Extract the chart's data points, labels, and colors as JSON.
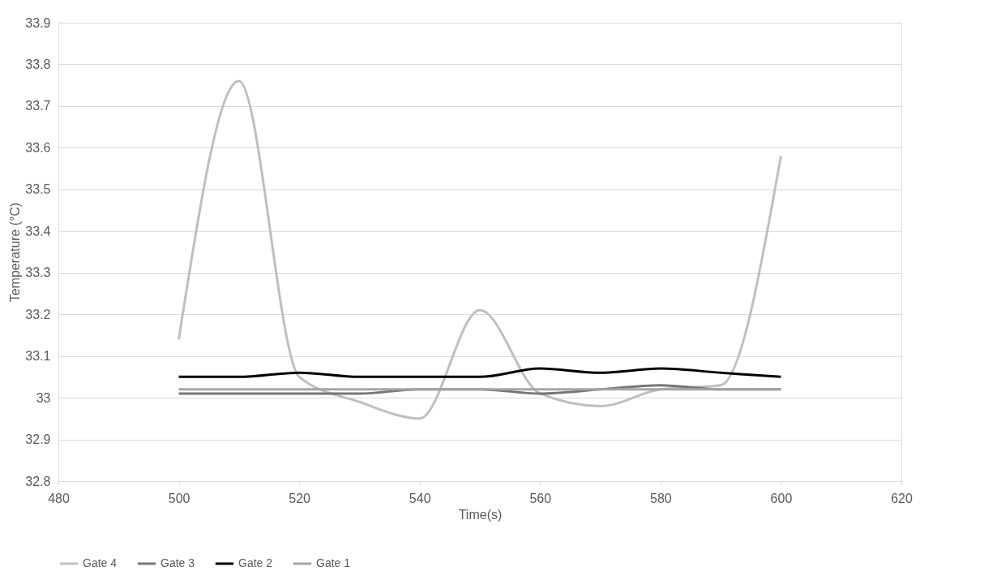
{
  "chart_data": {
    "type": "line",
    "xlabel": "Time(s)",
    "ylabel": "Temperature (°C)",
    "x": [
      500,
      510,
      520,
      530,
      540,
      550,
      560,
      570,
      580,
      590,
      600
    ],
    "series": [
      {
        "name": "Gate 4",
        "color": "#bfbfbf",
        "values": [
          33.14,
          33.76,
          33.05,
          32.99,
          32.95,
          33.21,
          33.01,
          32.98,
          33.02,
          33.03,
          33.58
        ]
      },
      {
        "name": "Gate 3",
        "color": "#767676",
        "values": [
          33.01,
          33.01,
          33.01,
          33.01,
          33.02,
          33.02,
          33.01,
          33.02,
          33.03,
          33.02,
          33.02
        ]
      },
      {
        "name": "Gate 2",
        "color": "#000000",
        "values": [
          33.05,
          33.05,
          33.06,
          33.05,
          33.05,
          33.05,
          33.07,
          33.06,
          33.07,
          33.06,
          33.05
        ]
      },
      {
        "name": "Gate 1",
        "color": "#a5a5a5",
        "values": [
          33.02,
          33.02,
          33.02,
          33.02,
          33.02,
          33.02,
          33.02,
          33.02,
          33.02,
          33.02,
          33.02
        ]
      }
    ],
    "xlim": [
      480,
      620
    ],
    "xticks": [
      480,
      500,
      520,
      540,
      560,
      580,
      600,
      620
    ],
    "ylim": [
      32.8,
      33.9
    ],
    "yticks": [
      32.8,
      32.9,
      33,
      33.1,
      33.2,
      33.3,
      33.4,
      33.5,
      33.6,
      33.7,
      33.8,
      33.9
    ],
    "grid": "y",
    "legend": "bottom",
    "marker": "none",
    "line_style": "solid"
  }
}
